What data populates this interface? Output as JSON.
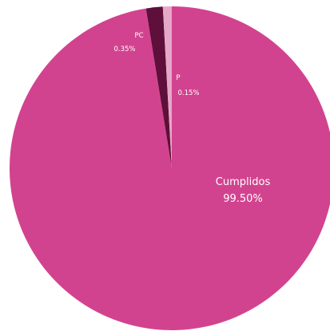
{
  "chart_data": {
    "type": "pie",
    "slices": [
      {
        "name": "Cumplidos",
        "label": "Cumplidos",
        "value": 99.5,
        "value_label": "99.50%",
        "color": "#d2438f"
      },
      {
        "name": "PC",
        "label": "PC",
        "value": 0.35,
        "value_label": "0.35%",
        "color": "#5e0f3a"
      },
      {
        "name": "P",
        "label": "P",
        "value": 0.15,
        "value_label": "0.15%",
        "color": "#e5a8c8"
      }
    ],
    "start": "top",
    "direction": "clockwise",
    "legend": "none"
  }
}
